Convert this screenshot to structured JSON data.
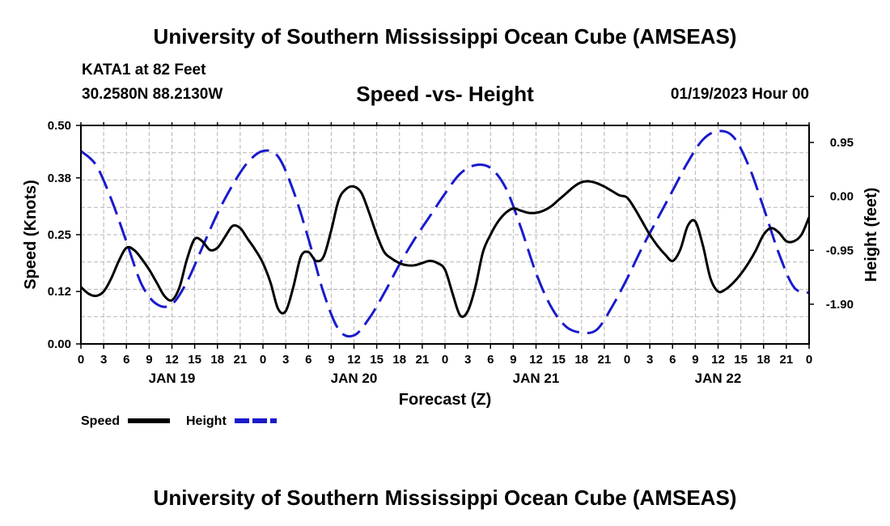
{
  "header": {
    "title": "University of Southern Mississippi Ocean Cube (AMSEAS)",
    "station": "KATA1 at 82 Feet",
    "coords": "30.2580N  88.2130W",
    "date": "01/19/2023 Hour 00"
  },
  "footer": {
    "title": "University of Southern Mississippi Ocean Cube (AMSEAS)"
  },
  "chart_data": {
    "type": "line",
    "title": "Speed -vs- Height",
    "xlabel": "Forecast (Z)",
    "ylabel": "Speed (Knots)",
    "y2label": "Height (feet)",
    "ylim": [
      0,
      0.5
    ],
    "y2lim": [
      -2.6,
      1.25
    ],
    "yticks": [
      "0.00",
      "0.12",
      "0.25",
      "0.38",
      "0.50"
    ],
    "y2ticks": [
      "-1.90",
      "-0.95",
      "0.00",
      "0.95"
    ],
    "xlim": [
      0,
      96
    ],
    "xtick_labels": [
      "0",
      "3",
      "6",
      "9",
      "12",
      "15",
      "18",
      "21",
      "0",
      "3",
      "6",
      "9",
      "12",
      "15",
      "18",
      "21",
      "0",
      "3",
      "6",
      "9",
      "12",
      "15",
      "18",
      "21",
      "0",
      "3",
      "6",
      "9",
      "12",
      "15",
      "18",
      "21",
      "0"
    ],
    "day_labels": [
      "JAN 19",
      "JAN 20",
      "JAN 21",
      "JAN 22"
    ],
    "grid": true,
    "series": [
      {
        "name": "Speed",
        "axis": "left",
        "color": "#000000",
        "style": "solid",
        "x": [
          0,
          1,
          2,
          3,
          4,
          5,
          6,
          7,
          8,
          9,
          10,
          11,
          12,
          13,
          14,
          15,
          16,
          17,
          18,
          19,
          20,
          21,
          22,
          23,
          24,
          25,
          26,
          27,
          28,
          29,
          30,
          31,
          32,
          33,
          34,
          35,
          36,
          37,
          38,
          39,
          40,
          41,
          42,
          43,
          44,
          45,
          46,
          47,
          48,
          49,
          50,
          51,
          52,
          53,
          54,
          55,
          56,
          57,
          58,
          59,
          60,
          61,
          62,
          63,
          64,
          65,
          66,
          67,
          68,
          69,
          70,
          71,
          72,
          73,
          74,
          75,
          76,
          77,
          78,
          79,
          80,
          81,
          82,
          83,
          84,
          85,
          86,
          87,
          88,
          89,
          90,
          91,
          92,
          93,
          94,
          95,
          96
        ],
        "values": [
          0.13,
          0.115,
          0.11,
          0.12,
          0.15,
          0.19,
          0.22,
          0.215,
          0.195,
          0.17,
          0.14,
          0.11,
          0.1,
          0.13,
          0.195,
          0.24,
          0.235,
          0.215,
          0.22,
          0.245,
          0.27,
          0.265,
          0.24,
          0.215,
          0.185,
          0.14,
          0.08,
          0.075,
          0.13,
          0.2,
          0.21,
          0.19,
          0.2,
          0.26,
          0.33,
          0.355,
          0.36,
          0.345,
          0.3,
          0.25,
          0.21,
          0.195,
          0.185,
          0.18,
          0.18,
          0.185,
          0.19,
          0.185,
          0.17,
          0.115,
          0.065,
          0.075,
          0.13,
          0.21,
          0.25,
          0.28,
          0.3,
          0.31,
          0.305,
          0.3,
          0.3,
          0.305,
          0.315,
          0.33,
          0.345,
          0.36,
          0.37,
          0.372,
          0.368,
          0.36,
          0.35,
          0.34,
          0.335,
          0.31,
          0.28,
          0.25,
          0.225,
          0.205,
          0.19,
          0.215,
          0.27,
          0.28,
          0.225,
          0.15,
          0.12,
          0.125,
          0.14,
          0.16,
          0.185,
          0.215,
          0.25,
          0.265,
          0.255,
          0.235,
          0.235,
          0.25,
          0.29
        ]
      },
      {
        "name": "Height",
        "axis": "right",
        "color": "#1a1acd",
        "style": "dashed",
        "x": [
          0,
          2,
          4,
          6,
          8,
          10,
          12,
          14,
          16,
          18,
          20,
          22,
          24,
          26,
          28,
          30,
          32,
          34,
          36,
          38,
          40,
          42,
          44,
          46,
          48,
          50,
          52,
          54,
          56,
          58,
          60,
          62,
          64,
          66,
          68,
          70,
          72,
          74,
          76,
          78,
          80,
          82,
          84,
          86,
          88,
          90,
          92,
          94,
          96
        ],
        "values": [
          0.8,
          0.55,
          -0.05,
          -0.8,
          -1.55,
          -1.9,
          -1.9,
          -1.5,
          -0.9,
          -0.3,
          0.2,
          0.6,
          0.8,
          0.7,
          0.1,
          -0.75,
          -1.7,
          -2.35,
          -2.45,
          -2.15,
          -1.7,
          -1.2,
          -0.75,
          -0.35,
          0.05,
          0.4,
          0.55,
          0.5,
          0.15,
          -0.55,
          -1.35,
          -1.95,
          -2.3,
          -2.4,
          -2.35,
          -1.95,
          -1.45,
          -0.9,
          -0.4,
          0.1,
          0.6,
          1.0,
          1.15,
          1.05,
          0.55,
          -0.2,
          -1.0,
          -1.6,
          -1.7
        ]
      }
    ],
    "legend": [
      {
        "label": "Speed",
        "color": "#000000",
        "style": "solid"
      },
      {
        "label": "Height",
        "color": "#1a1acd",
        "style": "dashed"
      }
    ],
    "legend_position": "bottom-left"
  }
}
